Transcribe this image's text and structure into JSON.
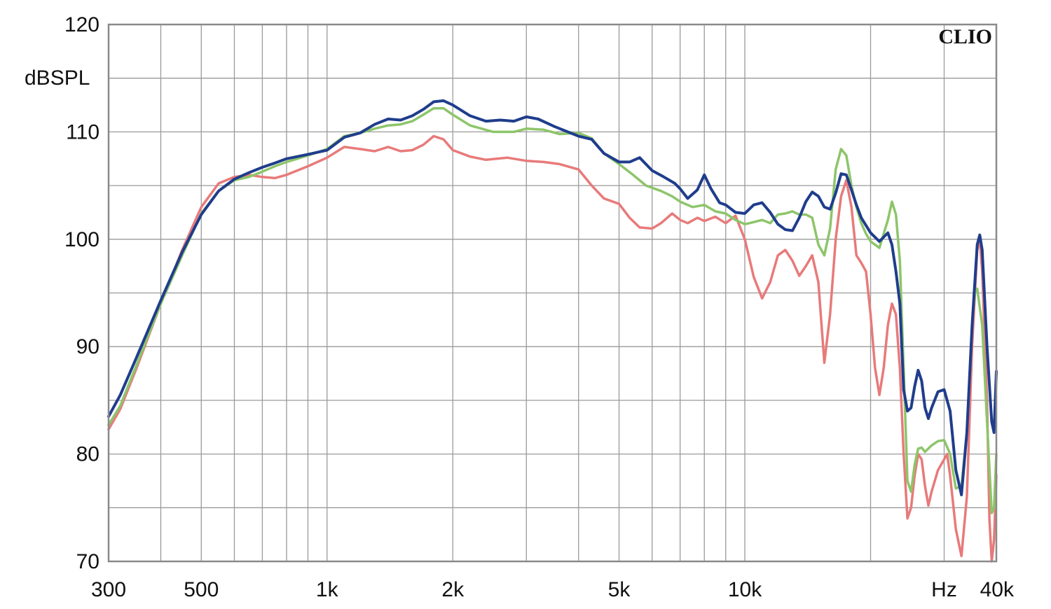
{
  "chart_data": {
    "type": "line",
    "title": "",
    "brand": "CLIO",
    "ylabel": "dBSPL",
    "xlabel": "Hz",
    "x_scale": "log",
    "xlim": [
      300,
      40000
    ],
    "ylim": [
      70,
      120
    ],
    "grid": true,
    "y_ticks": [
      {
        "value": 120,
        "label": "120"
      },
      {
        "value": 110,
        "label": "110"
      },
      {
        "value": 100,
        "label": "100"
      },
      {
        "value": 90,
        "label": "90"
      },
      {
        "value": 80,
        "label": "80"
      },
      {
        "value": 70,
        "label": "70"
      }
    ],
    "x_ticks": [
      {
        "value": 300,
        "label": "300"
      },
      {
        "value": 500,
        "label": "500"
      },
      {
        "value": 1000,
        "label": "1k"
      },
      {
        "value": 2000,
        "label": "2k"
      },
      {
        "value": 5000,
        "label": "5k"
      },
      {
        "value": 10000,
        "label": "10k"
      },
      {
        "value": 30000,
        "label": "Hz"
      },
      {
        "value": 40000,
        "label": "40k"
      }
    ],
    "x_gridlines": [
      400,
      500,
      600,
      700,
      800,
      900,
      1000,
      2000,
      3000,
      4000,
      5000,
      6000,
      7000,
      8000,
      9000,
      10000,
      20000,
      30000
    ],
    "y_gridlines": [
      75,
      80,
      85,
      90,
      95,
      100,
      105,
      110,
      115
    ],
    "series": [
      {
        "color": "#e87a7a",
        "width": 3.5,
        "points": [
          [
            300,
            82.3
          ],
          [
            320,
            84.2
          ],
          [
            350,
            88
          ],
          [
            400,
            94
          ],
          [
            450,
            99
          ],
          [
            500,
            103
          ],
          [
            550,
            105.2
          ],
          [
            600,
            105.8
          ],
          [
            650,
            106
          ],
          [
            700,
            105.8
          ],
          [
            750,
            105.7
          ],
          [
            800,
            106
          ],
          [
            900,
            106.8
          ],
          [
            1000,
            107.6
          ],
          [
            1100,
            108.6
          ],
          [
            1200,
            108.4
          ],
          [
            1300,
            108.2
          ],
          [
            1400,
            108.6
          ],
          [
            1500,
            108.2
          ],
          [
            1600,
            108.3
          ],
          [
            1700,
            108.8
          ],
          [
            1800,
            109.6
          ],
          [
            1900,
            109.3
          ],
          [
            2000,
            108.3
          ],
          [
            2200,
            107.7
          ],
          [
            2400,
            107.4
          ],
          [
            2700,
            107.6
          ],
          [
            3000,
            107.3
          ],
          [
            3300,
            107.2
          ],
          [
            3600,
            107
          ],
          [
            4000,
            106.5
          ],
          [
            4300,
            105
          ],
          [
            4600,
            103.8
          ],
          [
            5000,
            103.3
          ],
          [
            5300,
            102
          ],
          [
            5600,
            101.1
          ],
          [
            6000,
            101
          ],
          [
            6300,
            101.5
          ],
          [
            6700,
            102.4
          ],
          [
            7000,
            101.8
          ],
          [
            7300,
            101.5
          ],
          [
            7700,
            102
          ],
          [
            8000,
            101.7
          ],
          [
            8500,
            102.1
          ],
          [
            9000,
            101.5
          ],
          [
            9500,
            102.2
          ],
          [
            10000,
            100
          ],
          [
            10500,
            96.5
          ],
          [
            11000,
            94.5
          ],
          [
            11500,
            96
          ],
          [
            12000,
            98.5
          ],
          [
            12500,
            99
          ],
          [
            13000,
            98
          ],
          [
            13500,
            96.6
          ],
          [
            14000,
            97.5
          ],
          [
            14500,
            98.5
          ],
          [
            15000,
            96
          ],
          [
            15500,
            88.5
          ],
          [
            16000,
            93
          ],
          [
            16500,
            100
          ],
          [
            17000,
            104
          ],
          [
            17500,
            105.5
          ],
          [
            18000,
            103
          ],
          [
            18500,
            98.5
          ],
          [
            19000,
            97.8
          ],
          [
            19500,
            97
          ],
          [
            20000,
            93
          ],
          [
            20500,
            88
          ],
          [
            21000,
            85.5
          ],
          [
            21500,
            88
          ],
          [
            22000,
            92
          ],
          [
            22500,
            94
          ],
          [
            23000,
            93
          ],
          [
            23500,
            88
          ],
          [
            24000,
            80
          ],
          [
            24500,
            74
          ],
          [
            25000,
            75
          ],
          [
            25500,
            78
          ],
          [
            26000,
            80
          ],
          [
            26500,
            79.5
          ],
          [
            27000,
            77
          ],
          [
            27500,
            75.2
          ],
          [
            28000,
            76.5
          ],
          [
            29000,
            78.5
          ],
          [
            30000,
            79.5
          ],
          [
            30500,
            80
          ],
          [
            31000,
            78
          ],
          [
            32000,
            73
          ],
          [
            33000,
            70.5
          ],
          [
            34000,
            76
          ],
          [
            35000,
            90
          ],
          [
            36000,
            99
          ],
          [
            36500,
            100
          ],
          [
            37000,
            97
          ],
          [
            38000,
            85
          ],
          [
            38500,
            74
          ],
          [
            39000,
            70
          ],
          [
            39500,
            72
          ],
          [
            40000,
            78
          ]
        ]
      },
      {
        "color": "#8dc56a",
        "width": 3.5,
        "points": [
          [
            300,
            82.7
          ],
          [
            320,
            84.5
          ],
          [
            350,
            88.3
          ],
          [
            400,
            94
          ],
          [
            450,
            98.5
          ],
          [
            500,
            102.4
          ],
          [
            550,
            104.5
          ],
          [
            600,
            105.5
          ],
          [
            650,
            105.8
          ],
          [
            700,
            106.3
          ],
          [
            750,
            106.8
          ],
          [
            800,
            107.2
          ],
          [
            900,
            107.8
          ],
          [
            1000,
            108.4
          ],
          [
            1100,
            109.6
          ],
          [
            1200,
            109.9
          ],
          [
            1300,
            110.3
          ],
          [
            1400,
            110.6
          ],
          [
            1500,
            110.7
          ],
          [
            1600,
            111
          ],
          [
            1700,
            111.6
          ],
          [
            1800,
            112.2
          ],
          [
            1900,
            112.2
          ],
          [
            2000,
            111.6
          ],
          [
            2200,
            110.6
          ],
          [
            2500,
            110
          ],
          [
            2800,
            110
          ],
          [
            3000,
            110.3
          ],
          [
            3300,
            110.2
          ],
          [
            3600,
            109.8
          ],
          [
            4000,
            109.9
          ],
          [
            4300,
            109.4
          ],
          [
            4600,
            108
          ],
          [
            5000,
            107
          ],
          [
            5400,
            106
          ],
          [
            5800,
            105
          ],
          [
            6300,
            104.5
          ],
          [
            6700,
            104
          ],
          [
            7000,
            103.5
          ],
          [
            7500,
            103
          ],
          [
            8000,
            103.2
          ],
          [
            8500,
            102.6
          ],
          [
            9000,
            102.4
          ],
          [
            9500,
            101.8
          ],
          [
            10000,
            101.4
          ],
          [
            10500,
            101.6
          ],
          [
            11000,
            101.8
          ],
          [
            11500,
            101.5
          ],
          [
            12000,
            102.3
          ],
          [
            12500,
            102.4
          ],
          [
            13000,
            102.6
          ],
          [
            13500,
            102.3
          ],
          [
            14000,
            102.3
          ],
          [
            14500,
            102
          ],
          [
            15000,
            99.5
          ],
          [
            15500,
            98.5
          ],
          [
            16000,
            101
          ],
          [
            16500,
            106.5
          ],
          [
            17000,
            108.4
          ],
          [
            17500,
            107.8
          ],
          [
            18000,
            105
          ],
          [
            18500,
            103
          ],
          [
            19000,
            101.5
          ],
          [
            19500,
            100.5
          ],
          [
            20000,
            99.8
          ],
          [
            21000,
            99.2
          ],
          [
            22000,
            101.8
          ],
          [
            22500,
            103.5
          ],
          [
            23000,
            102.3
          ],
          [
            23500,
            98
          ],
          [
            24000,
            88
          ],
          [
            24500,
            77.5
          ],
          [
            25000,
            76.5
          ],
          [
            25500,
            79
          ],
          [
            26000,
            80.5
          ],
          [
            26500,
            80.6
          ],
          [
            27000,
            80.2
          ],
          [
            28000,
            80.8
          ],
          [
            29000,
            81.2
          ],
          [
            30000,
            81.3
          ],
          [
            31000,
            80
          ],
          [
            32000,
            76.8
          ],
          [
            33000,
            77
          ],
          [
            34000,
            82
          ],
          [
            35000,
            92
          ],
          [
            35500,
            95
          ],
          [
            36000,
            95.4
          ],
          [
            37000,
            92
          ],
          [
            38000,
            83
          ],
          [
            39000,
            74.5
          ],
          [
            39500,
            75
          ],
          [
            40000,
            80
          ]
        ]
      },
      {
        "color": "#1f3d8c",
        "width": 4,
        "points": [
          [
            300,
            83.5
          ],
          [
            320,
            85.5
          ],
          [
            350,
            89
          ],
          [
            400,
            94.3
          ],
          [
            450,
            98.8
          ],
          [
            500,
            102.3
          ],
          [
            550,
            104.5
          ],
          [
            600,
            105.6
          ],
          [
            650,
            106.2
          ],
          [
            700,
            106.7
          ],
          [
            750,
            107.1
          ],
          [
            800,
            107.5
          ],
          [
            900,
            107.9
          ],
          [
            1000,
            108.3
          ],
          [
            1100,
            109.5
          ],
          [
            1200,
            109.9
          ],
          [
            1300,
            110.7
          ],
          [
            1400,
            111.2
          ],
          [
            1500,
            111.1
          ],
          [
            1600,
            111.5
          ],
          [
            1700,
            112.1
          ],
          [
            1800,
            112.8
          ],
          [
            1900,
            112.9
          ],
          [
            2000,
            112.5
          ],
          [
            2200,
            111.5
          ],
          [
            2400,
            111
          ],
          [
            2600,
            111.1
          ],
          [
            2800,
            111
          ],
          [
            3000,
            111.4
          ],
          [
            3200,
            111.2
          ],
          [
            3500,
            110.5
          ],
          [
            4000,
            109.6
          ],
          [
            4300,
            109.3
          ],
          [
            4600,
            108
          ],
          [
            5000,
            107.2
          ],
          [
            5300,
            107.2
          ],
          [
            5600,
            107.6
          ],
          [
            6000,
            106.4
          ],
          [
            6400,
            105.8
          ],
          [
            6800,
            105.2
          ],
          [
            7000,
            104.7
          ],
          [
            7300,
            103.8
          ],
          [
            7700,
            104.6
          ],
          [
            8000,
            106
          ],
          [
            8300,
            104.7
          ],
          [
            8700,
            103.4
          ],
          [
            9000,
            103.2
          ],
          [
            9500,
            102.5
          ],
          [
            10000,
            102.4
          ],
          [
            10500,
            103.2
          ],
          [
            11000,
            103.4
          ],
          [
            11500,
            102.5
          ],
          [
            12000,
            101.4
          ],
          [
            12500,
            100.9
          ],
          [
            13000,
            100.8
          ],
          [
            13500,
            102
          ],
          [
            14000,
            103.5
          ],
          [
            14500,
            104.4
          ],
          [
            15000,
            104
          ],
          [
            15500,
            103
          ],
          [
            16000,
            102.8
          ],
          [
            16500,
            104.3
          ],
          [
            17000,
            106.1
          ],
          [
            17500,
            106
          ],
          [
            18000,
            104.6
          ],
          [
            18500,
            103.2
          ],
          [
            19000,
            102
          ],
          [
            20000,
            100.6
          ],
          [
            21000,
            99.8
          ],
          [
            22000,
            100.6
          ],
          [
            22500,
            99.5
          ],
          [
            23000,
            97
          ],
          [
            23500,
            94
          ],
          [
            24000,
            86
          ],
          [
            24500,
            84
          ],
          [
            25000,
            84.3
          ],
          [
            25500,
            86.3
          ],
          [
            26000,
            87.8
          ],
          [
            26500,
            86.8
          ],
          [
            27000,
            84.3
          ],
          [
            27500,
            83.3
          ],
          [
            28000,
            84.3
          ],
          [
            29000,
            85.8
          ],
          [
            30000,
            86
          ],
          [
            31000,
            84
          ],
          [
            32000,
            78.5
          ],
          [
            33000,
            76.2
          ],
          [
            34000,
            82
          ],
          [
            35000,
            92
          ],
          [
            36000,
            99.5
          ],
          [
            36500,
            100.4
          ],
          [
            37000,
            99
          ],
          [
            38000,
            90
          ],
          [
            39000,
            83
          ],
          [
            39500,
            82
          ],
          [
            40000,
            87.7
          ]
        ]
      }
    ]
  }
}
